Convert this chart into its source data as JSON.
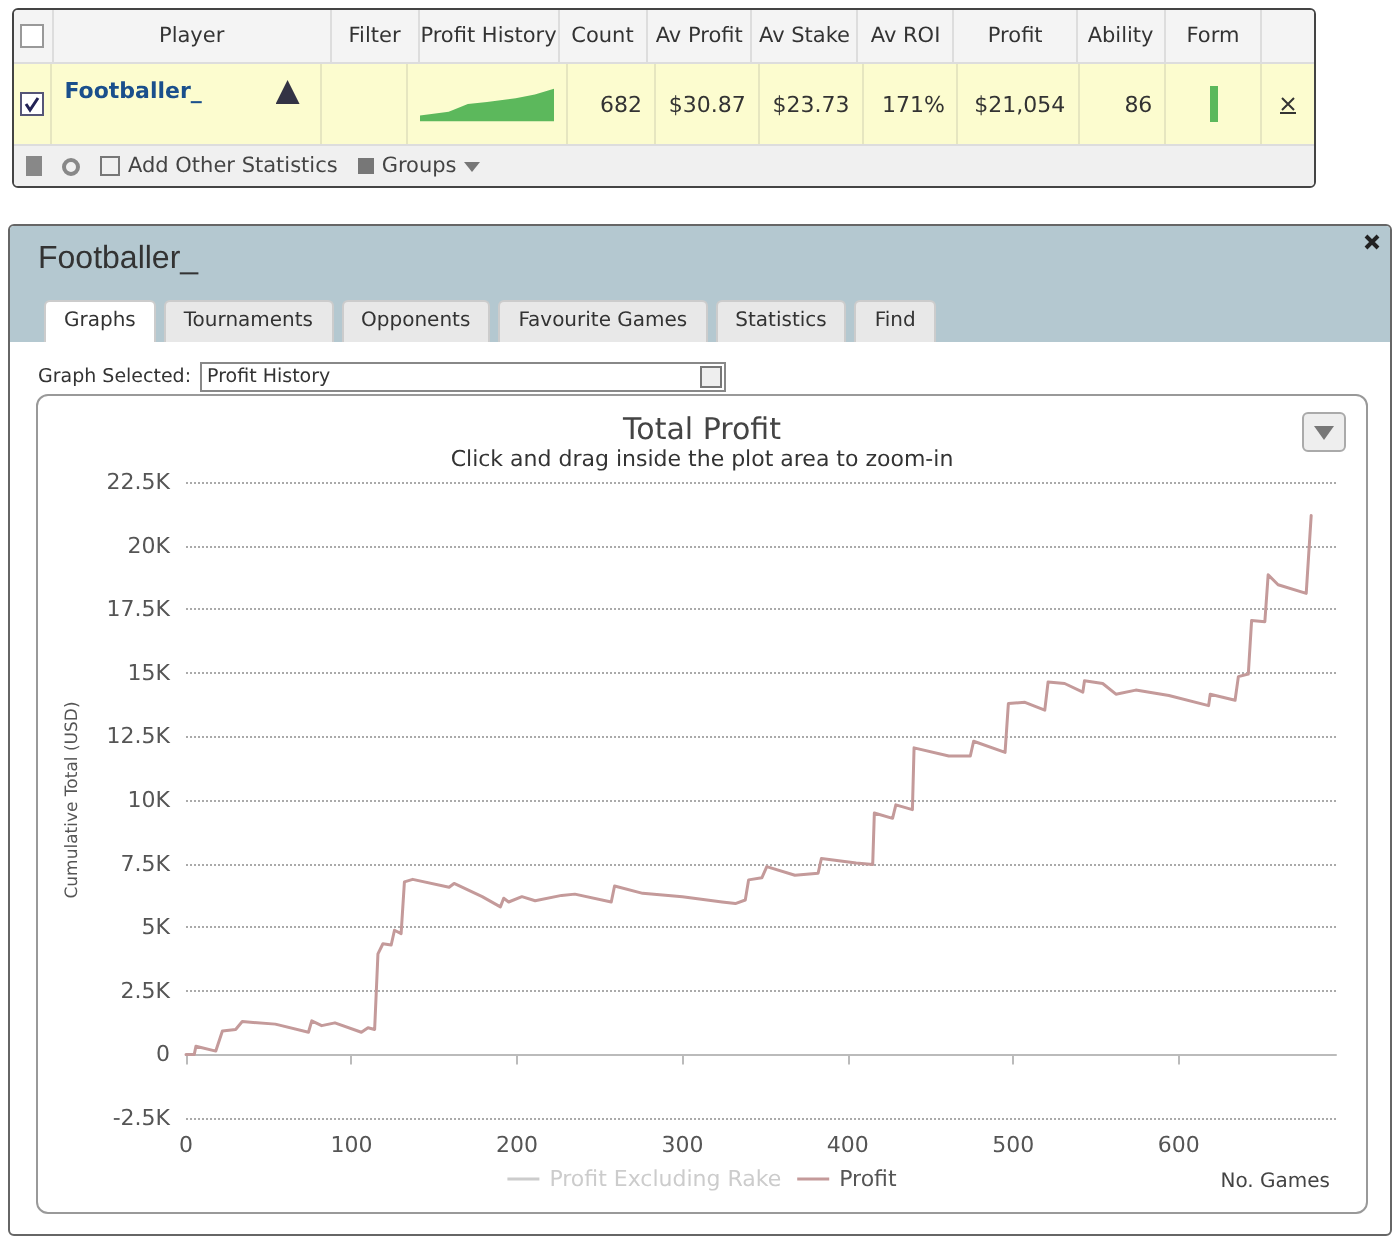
{
  "chart_data": [
    {
      "type": "other",
      "categories": [
        "Player",
        "Filter",
        "Profit History",
        "Count",
        "Av Profit",
        "Av Stake",
        "Av ROI",
        "Profit",
        "Ability",
        "Form",
        null
      ],
      "value_labels": [
        "Footballer_",
        null,
        null,
        "682",
        "$30.87",
        "$23.73",
        "171%",
        "$21,054",
        "86",
        null,
        null
      ],
      "annotations": [
        "Add Other Statistics",
        "Groups"
      ]
    },
    {
      "type": "other",
      "title": "Footballer_",
      "annotations": [
        "Graphs",
        "Tournaments",
        "Opponents",
        "Favourite Games",
        "Statistics",
        "Find",
        "Graph Selected:",
        "Profit History"
      ]
    },
    {
      "type": "line",
      "title": "Total Profit",
      "subtitle": "Click and drag inside the plot area to zoom-in",
      "ylabel": "Cumulative Total (USD)",
      "xlabel": "No. Games",
      "xlim": [
        0,
        695
      ],
      "xticks": [
        0,
        100,
        200,
        300,
        400,
        500,
        600
      ],
      "ylim": [
        -2500,
        22500
      ],
      "yticks": [
        {
          "value": -2500,
          "label": "-2.5K"
        },
        {
          "value": 0,
          "label": "0"
        },
        {
          "value": 2500,
          "label": "2.5K"
        },
        {
          "value": 5000,
          "label": "5K"
        },
        {
          "value": 7500,
          "label": "7.5K"
        },
        {
          "value": 10000,
          "label": "10K"
        },
        {
          "value": 12500,
          "label": "12.5K"
        },
        {
          "value": 15000,
          "label": "15K"
        },
        {
          "value": 17500,
          "label": "17.5K"
        },
        {
          "value": 20000,
          "label": "20K"
        },
        {
          "value": 22500,
          "label": "22.5K"
        }
      ],
      "grid": "y",
      "legend": "bottom",
      "marker": "none",
      "line_style": "solid",
      "series": [
        {
          "name": "Profit Excluding Rake",
          "color": "#cccccc"
        },
        {
          "name": "Profit",
          "color": "#c49a9a",
          "x": [
            0,
            5,
            6,
            18,
            22,
            30,
            34,
            54,
            74,
            76,
            82,
            90,
            106,
            110,
            114,
            116,
            119,
            124,
            126,
            130,
            132,
            137,
            159,
            162,
            179,
            190,
            192,
            195,
            203,
            211,
            227,
            235,
            257,
            259,
            276,
            300,
            324,
            332,
            338,
            340,
            348,
            351,
            368,
            382,
            384,
            405,
            415,
            416,
            427,
            429,
            439,
            440,
            461,
            474,
            476,
            495,
            497,
            507,
            519,
            521,
            531,
            542,
            543,
            554,
            562,
            574,
            594,
            618,
            619,
            634,
            636,
            642,
            644,
            652,
            654,
            660,
            677,
            680
          ],
          "values": [
            0,
            0,
            320,
            130,
            920,
            980,
            1290,
            1190,
            870,
            1320,
            1130,
            1240,
            870,
            1050,
            980,
            3950,
            4350,
            4300,
            4880,
            4750,
            6780,
            6880,
            6570,
            6720,
            6200,
            5800,
            6140,
            5990,
            6200,
            6040,
            6250,
            6300,
            5990,
            6620,
            6330,
            6200,
            5990,
            5930,
            6070,
            6860,
            6940,
            7380,
            7040,
            7120,
            7700,
            7520,
            7460,
            9490,
            9280,
            9810,
            9620,
            12050,
            11730,
            11730,
            12310,
            11870,
            13790,
            13840,
            13530,
            14640,
            14580,
            14240,
            14690,
            14580,
            14160,
            14320,
            14110,
            13710,
            14160,
            13920,
            14850,
            14950,
            17060,
            17010,
            18850,
            18460,
            18120,
            21180
          ]
        }
      ]
    }
  ]
}
